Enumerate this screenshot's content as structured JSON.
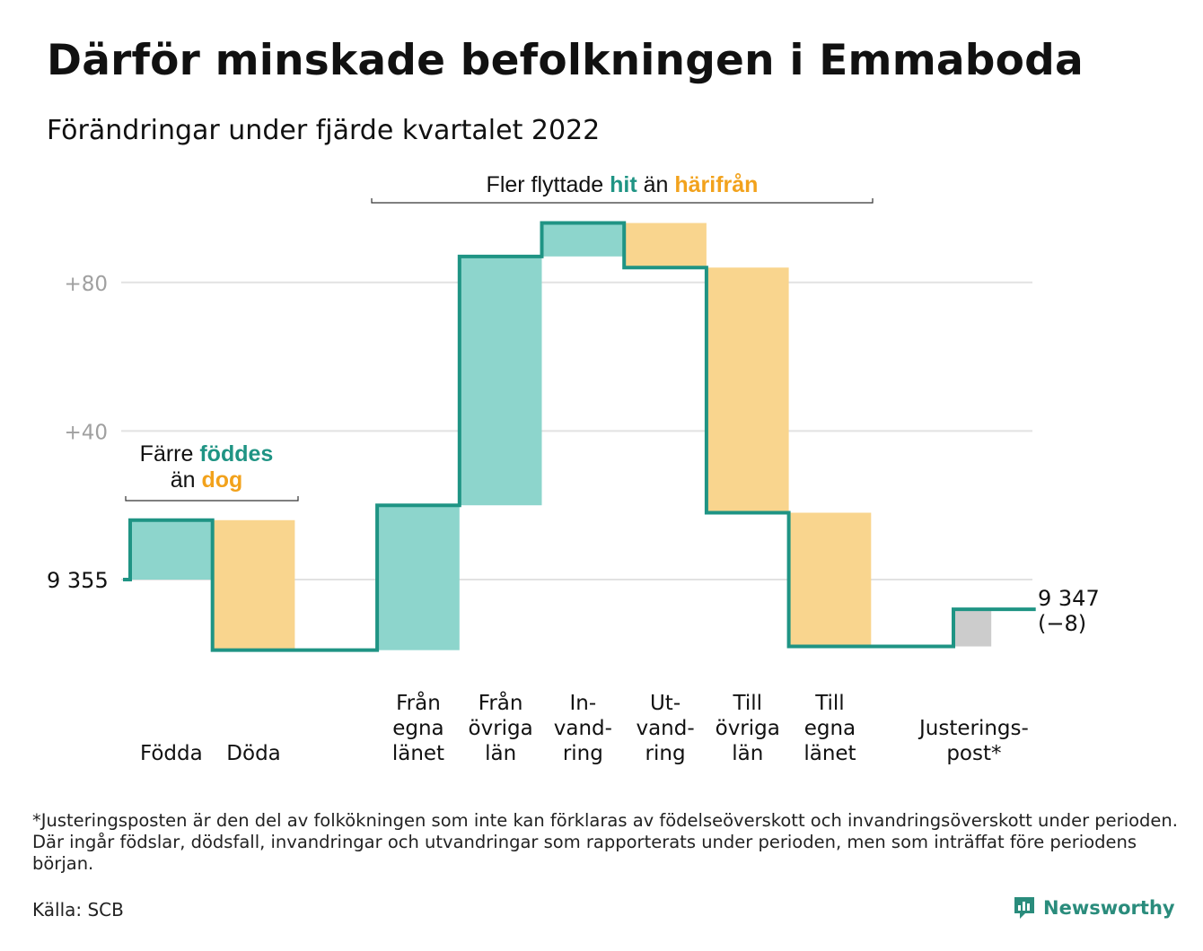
{
  "title": "Därför minskade befolkningen i Emmaboda",
  "subtitle": "Förändringar under fjärde kvartalet 2022",
  "footnote": "*Justeringsposten är den del av folkökningen som inte kan förklaras av födelseöverskott och invandringsöverskott under perioden. Där ingår födslar, dödsfall, invandringar och utvandringar som rapporterats under perioden, men som inträffat före periodens början.",
  "source": "Källa: SCB",
  "brand": {
    "name": "Newsworthy",
    "icon": "newsworthy-logo-icon"
  },
  "colors": {
    "inflow": "#8dd5cc",
    "outflow": "#f9d58e",
    "adjustment": "#cccccc",
    "line": "#1f9484",
    "teal_text": "#1f9484",
    "orange_text": "#f2a21c",
    "grid": "#e2e2e2",
    "tick": "#a0a0a0"
  },
  "chart_data": {
    "type": "waterfall",
    "start": {
      "label": "9 355",
      "value": 9355
    },
    "end": {
      "label_value": "9 347",
      "label_change": "(−8)",
      "value": 9347
    },
    "yticks": [
      {
        "label": "+40",
        "offset": 40
      },
      {
        "label": "+80",
        "offset": 80
      }
    ],
    "steps": [
      {
        "label_lines": [
          "Födda"
        ],
        "change": 16,
        "kind": "inflow"
      },
      {
        "label_lines": [
          "Döda"
        ],
        "change": -35,
        "kind": "outflow"
      },
      {
        "label_lines": [
          "",
          "",
          ""
        ],
        "change": 0,
        "kind": "gap"
      },
      {
        "label_lines": [
          "Från",
          "egna",
          "länet"
        ],
        "change": 39,
        "kind": "inflow"
      },
      {
        "label_lines": [
          "Från",
          "övriga",
          "län"
        ],
        "change": 67,
        "kind": "inflow"
      },
      {
        "label_lines": [
          "In-",
          "vand-",
          "ring"
        ],
        "change": 9,
        "kind": "inflow"
      },
      {
        "label_lines": [
          "Ut-",
          "vand-",
          "ring"
        ],
        "change": -12,
        "kind": "outflow"
      },
      {
        "label_lines": [
          "Till",
          "övriga",
          "län"
        ],
        "change": -66,
        "kind": "outflow"
      },
      {
        "label_lines": [
          "Till",
          "egna",
          "länet"
        ],
        "change": -36,
        "kind": "outflow"
      },
      {
        "label_lines": [
          "",
          ""
        ],
        "change": 0,
        "kind": "gap"
      },
      {
        "label_lines": [
          "Justerings-",
          "post*"
        ],
        "change": 10,
        "kind": "adjustment"
      }
    ],
    "annotations": [
      {
        "parts": [
          {
            "text": "Färre ",
            "color": "dark"
          },
          {
            "text": "föddes",
            "color": "teal"
          }
        ],
        "parts2": [
          {
            "text": "än ",
            "color": "dark"
          },
          {
            "text": "dog",
            "color": "orange"
          }
        ],
        "span": [
          0,
          1
        ]
      },
      {
        "parts": [
          {
            "text": "Fler flyttade ",
            "color": "dark"
          },
          {
            "text": "hit",
            "color": "teal"
          },
          {
            "text": " än ",
            "color": "dark"
          },
          {
            "text": "härifrån",
            "color": "orange"
          }
        ],
        "span": [
          3,
          8
        ]
      }
    ]
  }
}
